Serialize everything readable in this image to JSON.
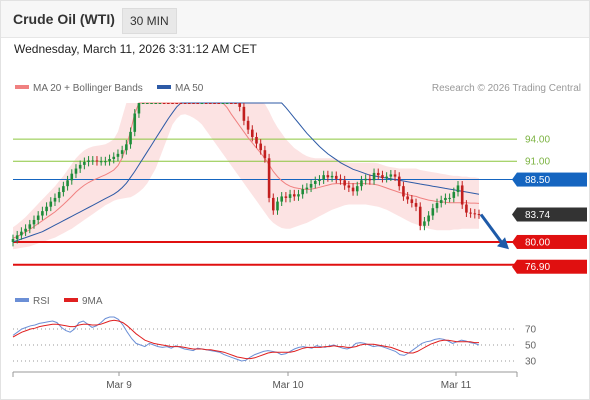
{
  "header": {
    "title": "Crude Oil (WTI)",
    "timeframe": "30 MIN"
  },
  "datetime": "Wednesday, March 11, 2026 3:31:12 AM CET",
  "credit": "Research © 2026 Trading Central",
  "colors": {
    "candle_up": "#1e8c3a",
    "candle_down": "#c21f1f",
    "ma20": "#f08080",
    "bollinger_fill": "#fcdede",
    "ma50": "#2d5aa6",
    "resistance": "#8cc63f",
    "pivot": "#1565c0",
    "support": "#e01010",
    "current": "#333333",
    "arrow": "#1e5aa8",
    "rsi": "#6b8fd6",
    "rsi_ma": "#e02020"
  },
  "chart_data": [
    {
      "type": "candlestick",
      "title": "Crude Oil (WTI)",
      "legend": [
        {
          "name": "MA 20 + Bollinger Bands",
          "color": "#f08080"
        },
        {
          "name": "MA 50",
          "color": "#2d5aa6"
        }
      ],
      "legend_position": "top-left",
      "x_ticks": [
        "Mar 9",
        "Mar 10",
        "Mar 11"
      ],
      "ylim": [
        75.5,
        99.2
      ],
      "levels": [
        {
          "label": "94.00",
          "value": 94.0,
          "kind": "resistance"
        },
        {
          "label": "91.00",
          "value": 91.0,
          "kind": "resistance"
        },
        {
          "label": "88.50",
          "value": 88.5,
          "kind": "pivot"
        },
        {
          "label": "83.74",
          "value": 83.74,
          "kind": "current"
        },
        {
          "label": "80.00",
          "value": 80.0,
          "kind": "support"
        },
        {
          "label": "76.90",
          "value": 76.9,
          "kind": "support"
        }
      ],
      "forecast": {
        "from": 83.74,
        "to": 79.0,
        "direction": "down"
      },
      "close": [
        80.4,
        80.9,
        81.4,
        81.8,
        82.4,
        83.0,
        83.6,
        84.2,
        84.8,
        85.5,
        86.0,
        86.8,
        87.6,
        88.4,
        89.3,
        90.0,
        90.5,
        90.9,
        91.1,
        91.1,
        91.0,
        91.0,
        91.0,
        91.3,
        91.6,
        92.0,
        92.5,
        93.3,
        95.0,
        97.5,
        101.0,
        106.0,
        111.0,
        115.5,
        118.5,
        120.5,
        119.0,
        116.5,
        113.5,
        110.0,
        107.5,
        107.2,
        105.0,
        104.0,
        103.0,
        104.0,
        103.0,
        102.8,
        102.4,
        102.2,
        103.0,
        103.5,
        102.2,
        100.6,
        98.4,
        96.5,
        95.3,
        94.3,
        93.4,
        92.5,
        91.4,
        86.0,
        84.3,
        85.5,
        86.2,
        86.0,
        86.5,
        86.2,
        86.5,
        87.2,
        87.4,
        87.9,
        88.3,
        88.5,
        89.1,
        88.8,
        89.0,
        88.6,
        88.4,
        87.7,
        87.4,
        86.9,
        87.6,
        88.4,
        88.6,
        88.4,
        89.4,
        89.1,
        88.7,
        88.9,
        89.2,
        88.9,
        87.6,
        86.2,
        85.8,
        85.3,
        84.8,
        82.2,
        82.8,
        83.6,
        84.6,
        85.3,
        85.7,
        86.0,
        86.0,
        86.8,
        87.7,
        85.1,
        84.0,
        83.9,
        83.8,
        83.74
      ],
      "bb_upper": [
        82.0,
        82.4,
        82.9,
        83.4,
        84.0,
        84.6,
        85.2,
        85.8,
        86.4,
        87.0,
        87.6,
        88.3,
        89.0,
        89.8,
        90.6,
        91.4,
        92.0,
        92.5,
        92.8,
        93.0,
        93.1,
        93.2,
        93.3,
        93.6,
        94.0,
        95.0,
        97.0,
        100.0,
        104.0,
        108.5,
        113.0,
        117.0,
        120.5,
        122.5,
        123.8,
        124.5,
        124.8,
        124.8,
        124.4,
        123.6,
        122.6,
        121.4,
        120.2,
        118.8,
        117.4,
        115.8,
        114.0,
        112.0,
        110.0,
        108.0,
        106.6,
        105.4,
        104.4,
        103.6,
        102.8,
        102.0,
        101.2,
        100.6,
        100.0,
        99.4,
        98.8,
        97.8,
        96.6,
        95.6,
        94.8,
        94.0,
        93.4,
        92.8,
        92.4,
        92.0,
        91.7,
        91.5,
        91.4,
        91.4,
        91.4,
        91.4,
        91.4,
        91.3,
        91.1,
        90.9,
        90.8,
        90.8,
        90.8,
        90.8,
        90.8,
        90.8,
        90.8,
        90.7,
        90.5,
        90.3,
        90.2,
        90.1,
        90.0,
        90.0,
        90.0,
        90.0,
        90.0,
        89.8,
        89.7,
        89.6,
        89.5,
        89.4,
        89.3,
        89.2,
        89.1,
        89.0,
        89.0,
        88.9,
        88.9,
        88.8,
        88.8,
        88.7
      ],
      "bb_lower": [
        79.0,
        79.1,
        79.2,
        79.3,
        79.4,
        79.6,
        79.8,
        80.0,
        80.2,
        80.4,
        80.6,
        80.9,
        81.2,
        81.5,
        81.8,
        82.2,
        82.6,
        83.0,
        83.4,
        83.8,
        84.2,
        84.6,
        85.0,
        85.3,
        85.6,
        85.8,
        85.9,
        86.0,
        86.1,
        86.4,
        86.8,
        87.3,
        88.0,
        89.0,
        90.0,
        91.5,
        93.0,
        94.5,
        96.0,
        96.8,
        97.3,
        97.4,
        97.2,
        96.9,
        96.5,
        96.0,
        95.2,
        94.4,
        93.6,
        92.8,
        92.0,
        91.2,
        90.4,
        89.6,
        88.8,
        88.0,
        87.2,
        86.4,
        85.6,
        84.8,
        84.0,
        83.2,
        82.6,
        82.2,
        81.9,
        81.8,
        81.8,
        82.0,
        82.2,
        82.4,
        82.6,
        82.9,
        83.2,
        83.5,
        83.8,
        84.1,
        84.4,
        84.6,
        84.8,
        85.0,
        85.1,
        85.1,
        85.1,
        85.1,
        85.1,
        85.0,
        84.9,
        84.8,
        84.6,
        84.4,
        84.1,
        83.8,
        83.5,
        83.2,
        82.9,
        82.6,
        82.4,
        82.2,
        82.0,
        81.8,
        81.7,
        81.6,
        81.6,
        81.6,
        81.6,
        81.7,
        81.7,
        81.8,
        81.8,
        81.8,
        81.8,
        81.8
      ],
      "ma50": [
        80.0,
        80.2,
        80.4,
        80.6,
        80.8,
        81.0,
        81.2,
        81.4,
        81.7,
        82.0,
        82.3,
        82.6,
        82.9,
        83.2,
        83.5,
        83.8,
        84.1,
        84.4,
        84.7,
        85.0,
        85.3,
        85.6,
        85.9,
        86.2,
        86.5,
        86.9,
        87.4,
        88.0,
        88.8,
        89.6,
        90.5,
        91.4,
        92.3,
        93.2,
        94.1,
        95.0,
        95.9,
        96.8,
        97.6,
        98.4,
        99.1,
        99.7,
        100.2,
        100.6,
        101.0,
        101.3,
        101.6,
        101.9,
        102.1,
        102.3,
        102.5,
        102.6,
        102.7,
        102.7,
        102.6,
        102.5,
        102.4,
        102.3,
        102.1,
        101.8,
        101.4,
        101.0,
        100.4,
        99.7,
        99.0,
        98.3,
        97.6,
        96.9,
        96.2,
        95.5,
        94.8,
        94.2,
        93.6,
        93.0,
        92.5,
        92.0,
        91.6,
        91.2,
        90.8,
        90.5,
        90.2,
        89.9,
        89.7,
        89.5,
        89.3,
        89.1,
        89.0,
        88.9,
        88.8,
        88.7,
        88.6,
        88.5,
        88.4,
        88.3,
        88.2,
        88.1,
        88.0,
        87.9,
        87.8,
        87.7,
        87.6,
        87.5,
        87.4,
        87.3,
        87.2,
        87.1,
        87.0,
        86.9,
        86.8,
        86.7,
        86.6,
        86.5
      ]
    },
    {
      "type": "line",
      "title": "RSI",
      "legend": [
        {
          "name": "RSI",
          "color": "#6b8fd6"
        },
        {
          "name": "9MA",
          "color": "#e02020"
        }
      ],
      "ylim": [
        20,
        90
      ],
      "y_ticks": [
        70,
        50,
        30
      ],
      "rsi": [
        62,
        66,
        70,
        72,
        74,
        75,
        77,
        78,
        79,
        80,
        78,
        72,
        68,
        66,
        70,
        78,
        80,
        76,
        72,
        74,
        78,
        83,
        85,
        85,
        82,
        75,
        66,
        58,
        52,
        50,
        48,
        52,
        50,
        48,
        47,
        48,
        46,
        49,
        47,
        45,
        44,
        43,
        46,
        45,
        44,
        43,
        42,
        41,
        38,
        36,
        34,
        32,
        30,
        31,
        35,
        38,
        40,
        42,
        43,
        42,
        41,
        38,
        39,
        42,
        45,
        47,
        48,
        47,
        46,
        49,
        48,
        47,
        49,
        50,
        48,
        46,
        45,
        47,
        52,
        53,
        52,
        50,
        48,
        49,
        48,
        46,
        44,
        42,
        38,
        37,
        40,
        44,
        48,
        52,
        54,
        55,
        57,
        58,
        57,
        55,
        52,
        54,
        56,
        55,
        53,
        52,
        50
      ],
      "rsi_ma": [
        60,
        63,
        66,
        68,
        70,
        71,
        73,
        74,
        75,
        76,
        76,
        75,
        74,
        73,
        73,
        75,
        76,
        76,
        75,
        75,
        76,
        78,
        80,
        81,
        80,
        78,
        74,
        69,
        64,
        60,
        56,
        54,
        52,
        51,
        50,
        49,
        48,
        48,
        48,
        47,
        46,
        45,
        45,
        45,
        44,
        44,
        43,
        42,
        41,
        39,
        37,
        35,
        34,
        33,
        33,
        34,
        36,
        38,
        40,
        41,
        41,
        41,
        41,
        41,
        42,
        44,
        46,
        47,
        47,
        47,
        47,
        48,
        48,
        49,
        48,
        48,
        47,
        47,
        48,
        50,
        51,
        51,
        51,
        50,
        49,
        48,
        47,
        45,
        43,
        41,
        40,
        40,
        42,
        45,
        48,
        51,
        53,
        55,
        56,
        56,
        55,
        54,
        54,
        54,
        54,
        53,
        53
      ]
    }
  ]
}
